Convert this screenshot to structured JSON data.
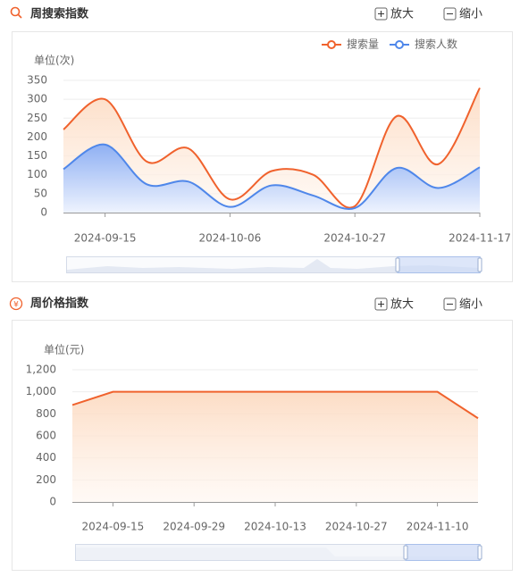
{
  "chart_data": [
    {
      "type": "line",
      "smooth": true,
      "area": true,
      "title": "周搜索指数",
      "zoom_in": "放大",
      "zoom_out": "缩小",
      "y_label": "单位(次)",
      "categories": [
        null,
        "2024-09-15",
        null,
        null,
        "2024-10-06",
        null,
        null,
        "2024-10-27",
        null,
        null,
        "2024-11-17"
      ],
      "series": [
        {
          "name": "搜索量",
          "color": "#f0622d",
          "values": [
            220,
            300,
            135,
            170,
            35,
            110,
            100,
            17,
            255,
            128,
            330
          ]
        },
        {
          "name": "搜索人数",
          "color": "#4f87ea",
          "values": [
            115,
            180,
            75,
            82,
            15,
            72,
            45,
            12,
            118,
            65,
            120
          ]
        }
      ],
      "ylim": [
        0,
        350
      ],
      "yticks": [
        0,
        50,
        100,
        150,
        200,
        250,
        300,
        350
      ],
      "grid": true,
      "legend": "top-right"
    },
    {
      "type": "line",
      "smooth": false,
      "area": true,
      "title": "周价格指数",
      "icon": "¥",
      "zoom_in": "放大",
      "zoom_out": "缩小",
      "y_label": "单位(元)",
      "categories": [
        null,
        "2024-09-15",
        null,
        "2024-09-29",
        null,
        "2024-10-13",
        null,
        "2024-10-27",
        null,
        "2024-11-10",
        null
      ],
      "series": [
        {
          "color": "#f0622d",
          "values": [
            880,
            1000,
            1000,
            1000,
            1000,
            1000,
            1000,
            1000,
            1000,
            1000,
            760
          ]
        }
      ],
      "ylim": [
        0,
        1200
      ],
      "yticks": [
        0,
        200,
        400,
        600,
        800,
        {
          "value": 1000,
          "label": "1,000"
        },
        {
          "value": 1200,
          "label": "1,200"
        }
      ],
      "grid": true
    }
  ]
}
